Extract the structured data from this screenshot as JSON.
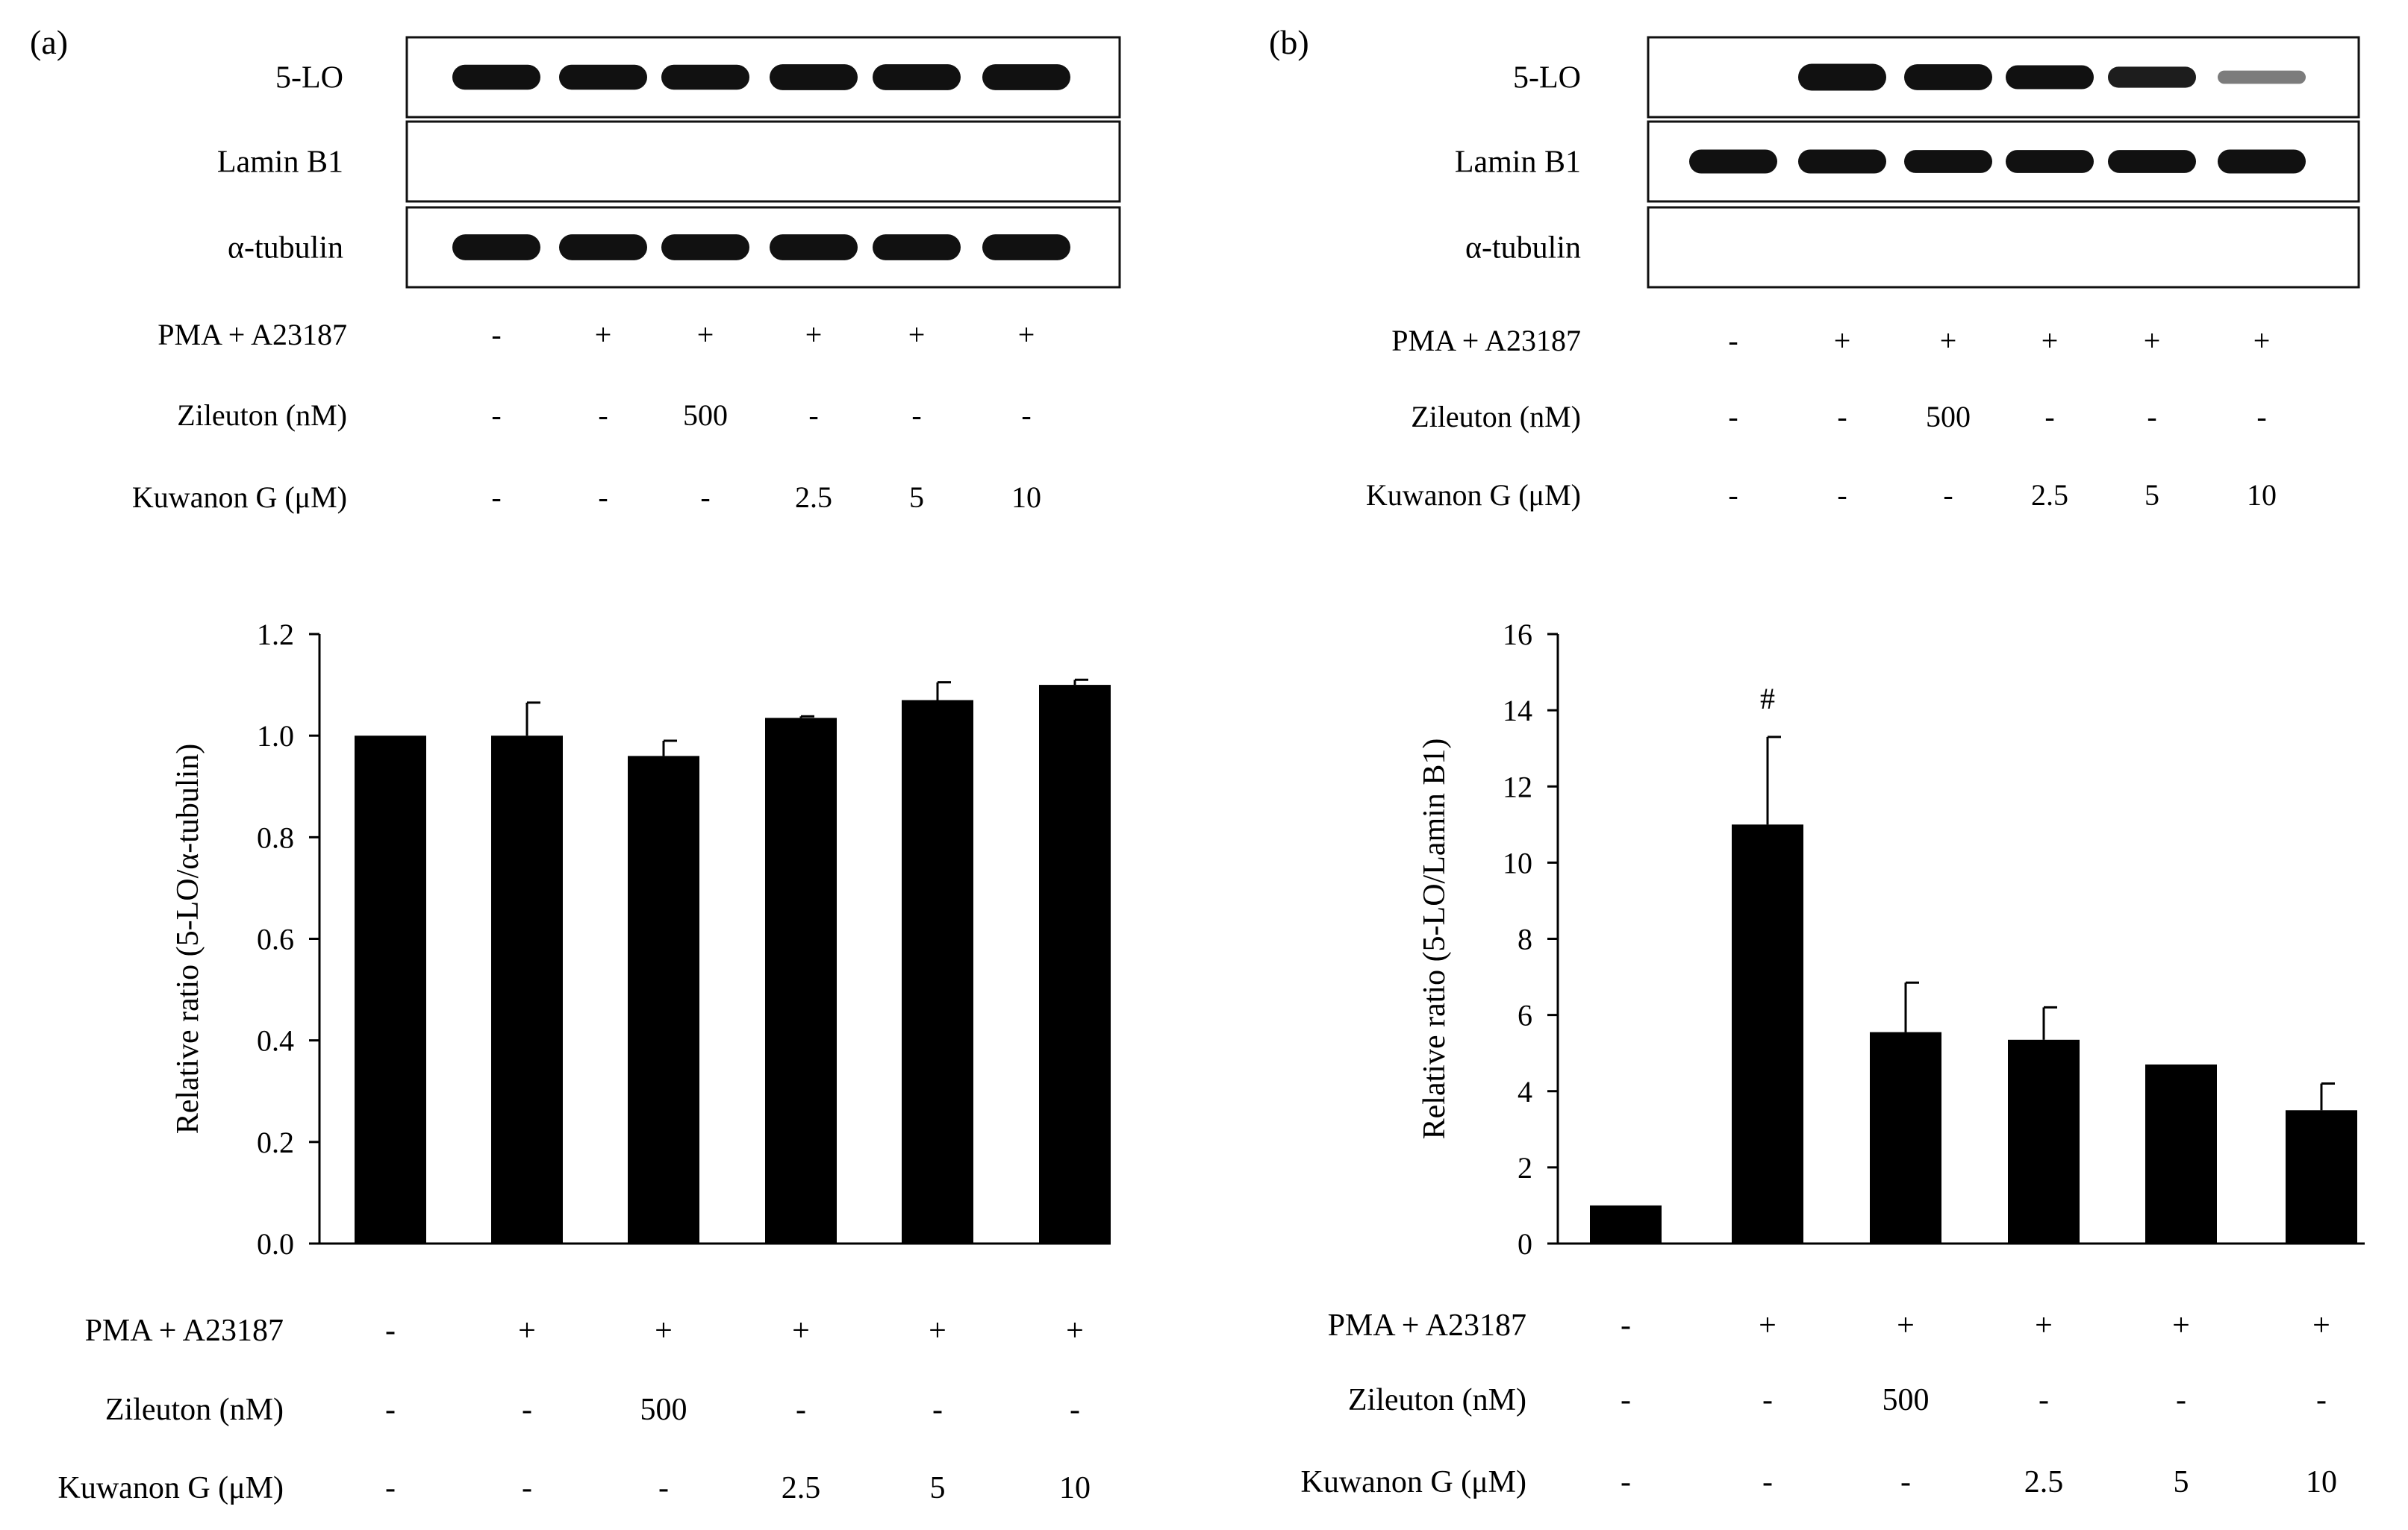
{
  "colors": {
    "bar": "#000000",
    "axis": "#000000",
    "blot_border": "#111111",
    "band": "#111111"
  },
  "panels": [
    {
      "label": "(a)",
      "blot": {
        "rows": [
          {
            "name": "5-LO",
            "bands": [
              0.9,
              0.9,
              0.9,
              0.95,
              0.95,
              0.95
            ]
          },
          {
            "name": "Lamin B1",
            "bands": [
              0,
              0,
              0,
              0,
              0,
              0
            ]
          },
          {
            "name": "α-tubulin",
            "bands": [
              0.95,
              0.95,
              0.95,
              0.95,
              0.95,
              0.95
            ]
          }
        ]
      },
      "treatments": [
        {
          "name": "PMA + A23187",
          "values": [
            "-",
            "+",
            "+",
            "+",
            "+",
            "+"
          ]
        },
        {
          "name": "Zileuton (nM)",
          "values": [
            "-",
            "-",
            "500",
            "-",
            "-",
            "-"
          ]
        },
        {
          "name": "Kuwanon G (μM)",
          "values": [
            "-",
            "-",
            "-",
            "2.5",
            "5",
            "10"
          ]
        }
      ]
    },
    {
      "label": "(b)",
      "blot": {
        "rows": [
          {
            "name": "5-LO",
            "bands": [
              0,
              1.0,
              0.95,
              0.85,
              0.7,
              0.3
            ]
          },
          {
            "name": "Lamin B1",
            "bands": [
              0.85,
              0.85,
              0.8,
              0.8,
              0.8,
              0.85
            ]
          },
          {
            "name": "α-tubulin",
            "bands": [
              0,
              0,
              0,
              0,
              0,
              0
            ]
          }
        ]
      },
      "treatments": [
        {
          "name": "PMA + A23187",
          "values": [
            "-",
            "+",
            "+",
            "+",
            "+",
            "+"
          ]
        },
        {
          "name": "Zileuton (nM)",
          "values": [
            "-",
            "-",
            "500",
            "-",
            "-",
            "-"
          ]
        },
        {
          "name": "Kuwanon G (μM)",
          "values": [
            "-",
            "-",
            "-",
            "2.5",
            "5",
            "10"
          ]
        }
      ]
    }
  ],
  "chart_data": [
    {
      "type": "bar",
      "panel": "(a)",
      "ylabel": "Relative ratio (5-LO/α-tubulin)",
      "ylim": [
        0,
        1.2
      ],
      "yticks": [
        0.0,
        0.2,
        0.4,
        0.6,
        0.8,
        1.0,
        1.2
      ],
      "ytick_labels": [
        "0.0",
        "0.2",
        "0.4",
        "0.6",
        "0.8",
        "1.0",
        "1.2"
      ],
      "values": [
        1.0,
        1.0,
        0.96,
        1.035,
        1.07,
        1.1
      ],
      "errors": [
        0,
        0.065,
        0.03,
        0.003,
        0.035,
        0.01
      ],
      "annotations": [
        "",
        "",
        "",
        "",
        "",
        ""
      ],
      "treatments": [
        {
          "name": "PMA + A23187",
          "values": [
            "-",
            "+",
            "+",
            "+",
            "+",
            "+"
          ]
        },
        {
          "name": "Zileuton (nM)",
          "values": [
            "-",
            "-",
            "500",
            "-",
            "-",
            "-"
          ]
        },
        {
          "name": "Kuwanon G (μM)",
          "values": [
            "-",
            "-",
            "-",
            "2.5",
            "5",
            "10"
          ]
        }
      ]
    },
    {
      "type": "bar",
      "panel": "(b)",
      "ylabel": "Relative ratio (5-LO/Lamin B1)",
      "ylim": [
        0,
        16
      ],
      "yticks": [
        0,
        2,
        4,
        6,
        8,
        10,
        12,
        14,
        16
      ],
      "ytick_labels": [
        "0",
        "2",
        "4",
        "6",
        "8",
        "10",
        "12",
        "14",
        "16"
      ],
      "values": [
        1.0,
        11.0,
        5.55,
        5.35,
        4.7,
        3.5
      ],
      "errors": [
        0,
        2.3,
        1.3,
        0.85,
        0,
        0.7
      ],
      "annotations": [
        "",
        "#",
        "",
        "",
        "",
        ""
      ],
      "treatments": [
        {
          "name": "PMA + A23187",
          "values": [
            "-",
            "+",
            "+",
            "+",
            "+",
            "+"
          ]
        },
        {
          "name": "Zileuton (nM)",
          "values": [
            "-",
            "-",
            "500",
            "-",
            "-",
            "-"
          ]
        },
        {
          "name": "Kuwanon G (μM)",
          "values": [
            "-",
            "-",
            "-",
            "2.5",
            "5",
            "10"
          ]
        }
      ]
    }
  ]
}
